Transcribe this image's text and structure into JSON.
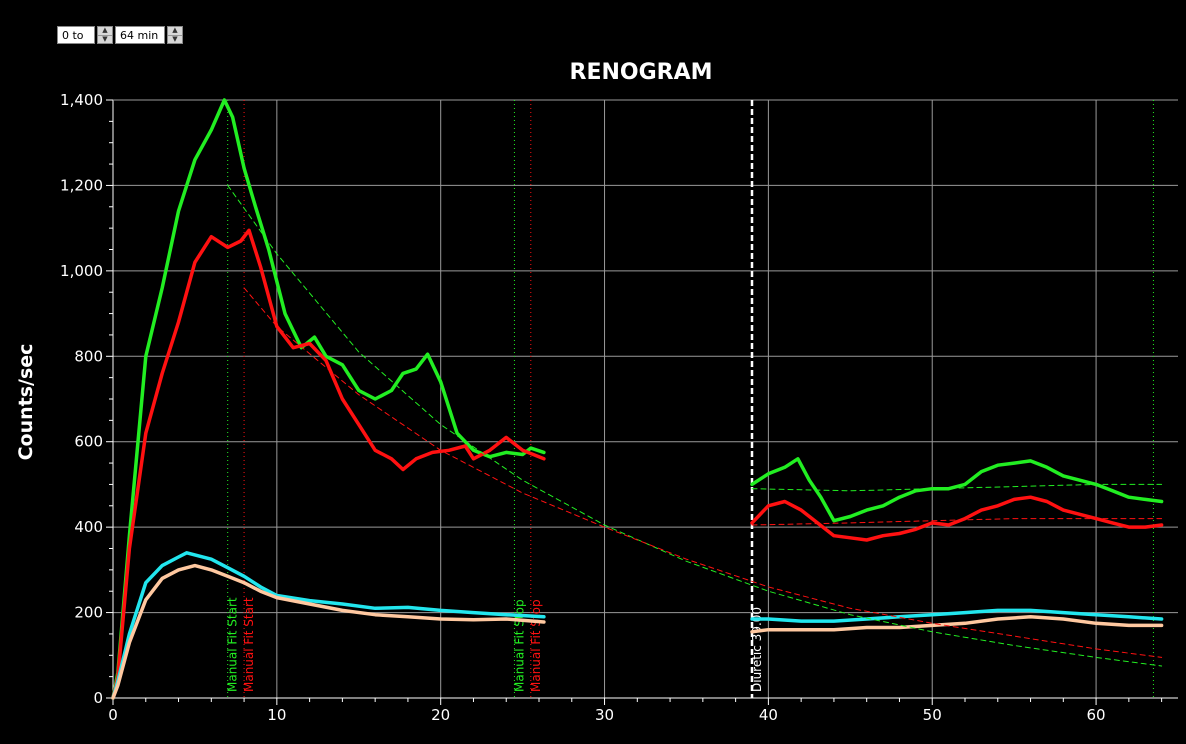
{
  "range": {
    "start_label": "0 to",
    "end_label": "64 min",
    "up_icon": "arrow-up-icon",
    "down_icon": "arrow-down-icon"
  },
  "chart_data": {
    "type": "line",
    "title": "RENOGRAM",
    "xlabel": "",
    "ylabel": "Counts/sec",
    "xlim": [
      0,
      65
    ],
    "ylim": [
      0,
      1400
    ],
    "x_ticks": [
      0,
      10,
      20,
      30,
      40,
      50,
      60
    ],
    "y_ticks": [
      0,
      200,
      400,
      600,
      800,
      1000,
      1200,
      1400
    ],
    "x_tick_labels": [
      "0",
      "10",
      "20",
      "30",
      "40",
      "50",
      "60"
    ],
    "y_tick_labels": [
      "0",
      "200",
      "400",
      "600",
      "800",
      "1,000",
      "1,200",
      "1,400"
    ],
    "grid": true,
    "colors": {
      "green": "#22ee22",
      "red": "#ff1111",
      "cyan": "#22e6ee",
      "peach": "#ffc8a0",
      "white": "#ffffff"
    },
    "series": [
      {
        "color": "#22ee22",
        "width": 3.5,
        "segments": [
          [
            [
              0,
              0
            ],
            [
              0.3,
              60
            ],
            [
              1,
              380
            ],
            [
              2,
              800
            ],
            [
              3,
              960
            ],
            [
              4,
              1140
            ],
            [
              5,
              1260
            ],
            [
              6,
              1330
            ],
            [
              6.8,
              1400
            ],
            [
              7.3,
              1360
            ],
            [
              8,
              1240
            ],
            [
              8.7,
              1150
            ],
            [
              9.5,
              1050
            ],
            [
              10.5,
              900
            ],
            [
              11.5,
              820
            ],
            [
              12.3,
              845
            ],
            [
              13,
              800
            ],
            [
              14,
              780
            ],
            [
              15,
              720
            ],
            [
              16,
              700
            ],
            [
              17,
              720
            ],
            [
              17.7,
              760
            ],
            [
              18.5,
              770
            ],
            [
              19.2,
              805
            ],
            [
              20,
              740
            ],
            [
              21,
              620
            ],
            [
              22,
              580
            ],
            [
              23,
              565
            ],
            [
              24,
              575
            ],
            [
              25,
              570
            ],
            [
              25.5,
              585
            ],
            [
              26.3,
              575
            ]
          ],
          [
            [
              39,
              500
            ],
            [
              40,
              525
            ],
            [
              41,
              540
            ],
            [
              41.8,
              560
            ],
            [
              42.5,
              510
            ],
            [
              43.2,
              470
            ],
            [
              44,
              415
            ],
            [
              45,
              425
            ],
            [
              46,
              440
            ],
            [
              47,
              450
            ],
            [
              48,
              470
            ],
            [
              49,
              485
            ],
            [
              50,
              490
            ],
            [
              51,
              490
            ],
            [
              52,
              500
            ],
            [
              53,
              530
            ],
            [
              54,
              545
            ],
            [
              55,
              550
            ],
            [
              56,
              555
            ],
            [
              57,
              540
            ],
            [
              58,
              520
            ],
            [
              59,
              510
            ],
            [
              60,
              500
            ],
            [
              61,
              485
            ],
            [
              62,
              470
            ],
            [
              63,
              465
            ],
            [
              64,
              460
            ]
          ]
        ]
      },
      {
        "color": "#ff1111",
        "width": 3.5,
        "segments": [
          [
            [
              0,
              0
            ],
            [
              0.3,
              50
            ],
            [
              1,
              350
            ],
            [
              2,
              620
            ],
            [
              3,
              760
            ],
            [
              4,
              880
            ],
            [
              5,
              1020
            ],
            [
              6,
              1080
            ],
            [
              7,
              1055
            ],
            [
              7.8,
              1070
            ],
            [
              8.3,
              1095
            ],
            [
              9,
              1010
            ],
            [
              10,
              870
            ],
            [
              11,
              820
            ],
            [
              12,
              830
            ],
            [
              13,
              790
            ],
            [
              14,
              700
            ],
            [
              15,
              640
            ],
            [
              16,
              580
            ],
            [
              17,
              560
            ],
            [
              17.7,
              535
            ],
            [
              18.5,
              560
            ],
            [
              19.5,
              575
            ],
            [
              20.5,
              580
            ],
            [
              21.5,
              590
            ],
            [
              22,
              560
            ],
            [
              23,
              580
            ],
            [
              24,
              610
            ],
            [
              25,
              580
            ],
            [
              26.3,
              560
            ]
          ],
          [
            [
              39,
              410
            ],
            [
              40,
              450
            ],
            [
              41,
              460
            ],
            [
              42,
              440
            ],
            [
              43,
              410
            ],
            [
              44,
              380
            ],
            [
              45,
              375
            ],
            [
              46,
              370
            ],
            [
              47,
              380
            ],
            [
              48,
              385
            ],
            [
              49,
              395
            ],
            [
              50,
              410
            ],
            [
              51,
              405
            ],
            [
              52,
              420
            ],
            [
              53,
              440
            ],
            [
              54,
              450
            ],
            [
              55,
              465
            ],
            [
              56,
              470
            ],
            [
              57,
              460
            ],
            [
              58,
              440
            ],
            [
              59,
              430
            ],
            [
              60,
              420
            ],
            [
              61,
              410
            ],
            [
              62,
              400
            ],
            [
              63,
              400
            ],
            [
              64,
              405
            ]
          ]
        ]
      },
      {
        "color": "#22e6ee",
        "width": 3.5,
        "segments": [
          [
            [
              0,
              0
            ],
            [
              0.3,
              40
            ],
            [
              1,
              150
            ],
            [
              2,
              270
            ],
            [
              3,
              310
            ],
            [
              4,
              330
            ],
            [
              4.5,
              340
            ],
            [
              5,
              335
            ],
            [
              6,
              325
            ],
            [
              7,
              305
            ],
            [
              8,
              285
            ],
            [
              9,
              260
            ],
            [
              10,
              240
            ],
            [
              12,
              228
            ],
            [
              14,
              220
            ],
            [
              16,
              210
            ],
            [
              18,
              212
            ],
            [
              20,
              205
            ],
            [
              22,
              200
            ],
            [
              24,
              195
            ],
            [
              26.3,
              190
            ]
          ],
          [
            [
              39,
              185
            ],
            [
              40,
              185
            ],
            [
              42,
              180
            ],
            [
              44,
              180
            ],
            [
              46,
              185
            ],
            [
              48,
              190
            ],
            [
              50,
              195
            ],
            [
              52,
              200
            ],
            [
              54,
              205
            ],
            [
              56,
              205
            ],
            [
              58,
              200
            ],
            [
              60,
              195
            ],
            [
              62,
              190
            ],
            [
              64,
              185
            ]
          ]
        ]
      },
      {
        "color": "#ffc8a0",
        "width": 3.5,
        "segments": [
          [
            [
              0,
              0
            ],
            [
              0.3,
              30
            ],
            [
              1,
              130
            ],
            [
              2,
              230
            ],
            [
              3,
              280
            ],
            [
              4,
              300
            ],
            [
              5,
              310
            ],
            [
              6,
              300
            ],
            [
              7,
              285
            ],
            [
              8,
              270
            ],
            [
              9,
              250
            ],
            [
              10,
              235
            ],
            [
              12,
              220
            ],
            [
              14,
              205
            ],
            [
              16,
              195
            ],
            [
              18,
              190
            ],
            [
              20,
              185
            ],
            [
              22,
              183
            ],
            [
              24,
              185
            ],
            [
              26.3,
              178
            ]
          ],
          [
            [
              39,
              155
            ],
            [
              40,
              160
            ],
            [
              42,
              160
            ],
            [
              44,
              160
            ],
            [
              46,
              165
            ],
            [
              48,
              165
            ],
            [
              50,
              170
            ],
            [
              52,
              175
            ],
            [
              54,
              185
            ],
            [
              56,
              190
            ],
            [
              58,
              185
            ],
            [
              60,
              175
            ],
            [
              62,
              170
            ],
            [
              64,
              170
            ]
          ]
        ]
      },
      {
        "color": "#22ee22",
        "width": 1,
        "dash": "5,4",
        "segments": [
          [
            [
              7,
              1200
            ],
            [
              10,
              1040
            ],
            [
              15,
              810
            ],
            [
              20,
              640
            ],
            [
              25,
              510
            ],
            [
              30,
              405
            ],
            [
              35,
              320
            ],
            [
              40,
              250
            ],
            [
              45,
              195
            ],
            [
              50,
              155
            ],
            [
              55,
              123
            ],
            [
              60,
              95
            ],
            [
              64,
              75
            ]
          ],
          [
            [
              39,
              490
            ],
            [
              45,
              485
            ],
            [
              50,
              490
            ],
            [
              55,
              495
            ],
            [
              60,
              500
            ],
            [
              64,
              500
            ]
          ]
        ]
      },
      {
        "color": "#ff1111",
        "width": 1,
        "dash": "5,4",
        "segments": [
          [
            [
              8,
              960
            ],
            [
              10,
              870
            ],
            [
              15,
              710
            ],
            [
              20,
              580
            ],
            [
              25,
              480
            ],
            [
              30,
              400
            ],
            [
              35,
              325
            ],
            [
              40,
              260
            ],
            [
              45,
              210
            ],
            [
              50,
              175
            ],
            [
              55,
              145
            ],
            [
              60,
              115
            ],
            [
              64,
              95
            ]
          ],
          [
            [
              39,
              405
            ],
            [
              45,
              410
            ],
            [
              50,
              415
            ],
            [
              55,
              420
            ],
            [
              60,
              420
            ],
            [
              64,
              420
            ]
          ]
        ]
      }
    ],
    "markers": [
      {
        "x": 7.0,
        "color": "#22ee22",
        "label": "Manual Fit Start",
        "style": "dotted"
      },
      {
        "x": 8.0,
        "color": "#ff1111",
        "label": "Manual Fit Start",
        "style": "dotted"
      },
      {
        "x": 24.5,
        "color": "#22ee22",
        "label": "Manual Fit Stop",
        "style": "dotted"
      },
      {
        "x": 25.5,
        "color": "#ff1111",
        "label": "Manual Fit Stop",
        "style": "dotted"
      },
      {
        "x": 39.0,
        "color": "#ffffff",
        "label": "Diuretic 39.00",
        "style": "dashed"
      },
      {
        "x": 63.5,
        "color": "#22ee22",
        "label": "",
        "style": "dotted"
      }
    ]
  }
}
